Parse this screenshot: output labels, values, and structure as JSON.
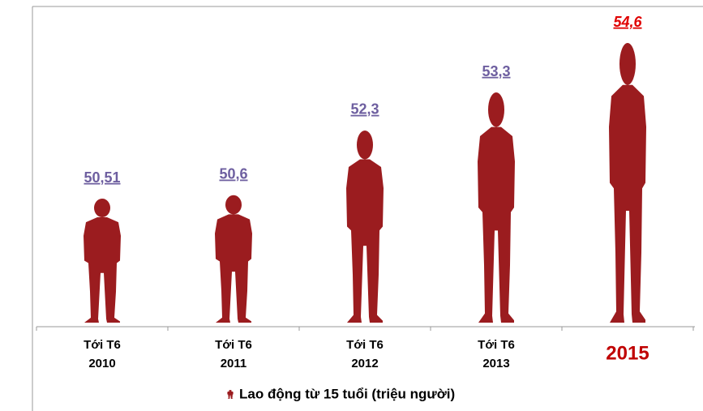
{
  "chart_data": {
    "type": "pictograph",
    "categories": [
      [
        "Tới T6",
        "2010"
      ],
      [
        "Tới T6",
        "2011"
      ],
      [
        "Tới T6",
        "2012"
      ],
      [
        "Tới T6",
        "2013"
      ],
      [
        "2015"
      ]
    ],
    "category_colors": [
      "#000000",
      "#000000",
      "#000000",
      "#000000",
      "#c00000"
    ],
    "series": [
      {
        "name": "Lao động từ 15 tuổi (triệu người)",
        "color": "#9b1c1f",
        "values": [
          50.51,
          50.6,
          52.3,
          53.3,
          54.6
        ],
        "value_labels": [
          "50,51",
          "50,6",
          "52,3",
          "53,3",
          "54,6"
        ],
        "label_colors": [
          "#6e5fa0",
          "#6e5fa0",
          "#6e5fa0",
          "#6e5fa0",
          "#e00000"
        ]
      }
    ]
  }
}
